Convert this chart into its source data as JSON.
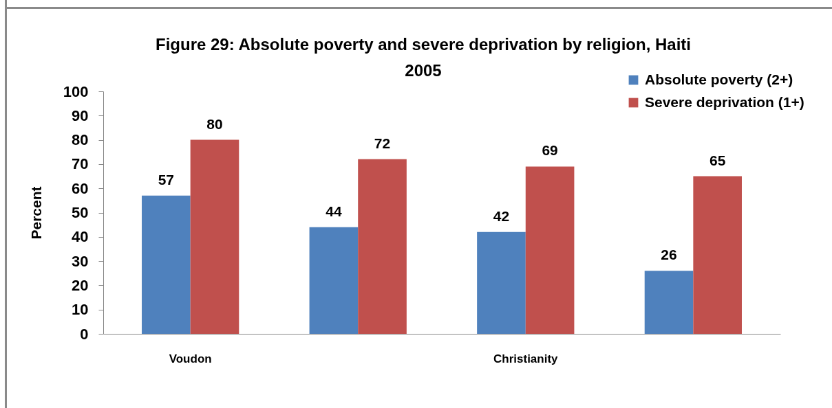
{
  "chart_data": {
    "type": "bar",
    "title": "Figure 29: Absolute poverty and severe deprivation by religion, Haiti 2005",
    "ylabel": "Percent",
    "categories": [
      "Voudon",
      null,
      "Christianity",
      null
    ],
    "series": [
      {
        "name": "Absolute poverty (2+)",
        "color": "#4f81bd",
        "values": [
          57,
          44,
          42,
          26
        ]
      },
      {
        "name": "Severe deprivation (1+)",
        "color": "#c0504d",
        "values": [
          80,
          72,
          69,
          65
        ]
      }
    ],
    "ylim": [
      0,
      100
    ],
    "yticks": [
      0,
      10,
      20,
      30,
      40,
      50,
      60,
      70,
      80,
      90,
      100
    ],
    "data_labels": true,
    "legend": "top right"
  }
}
